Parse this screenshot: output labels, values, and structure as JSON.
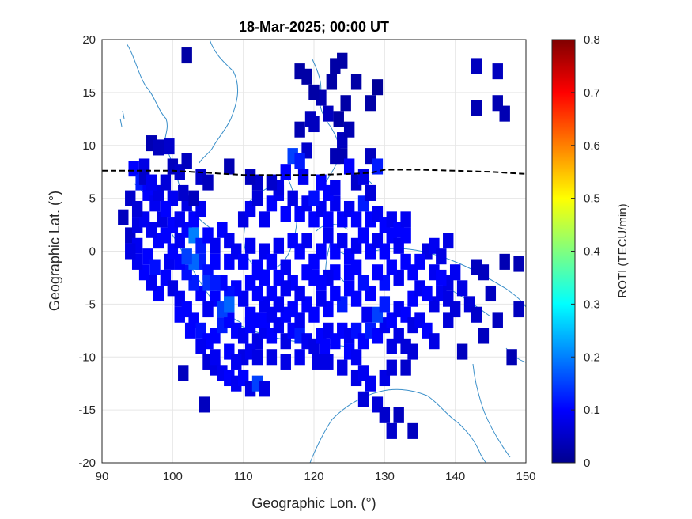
{
  "chart_data": {
    "type": "heatmap",
    "title": "18-Mar-2025; 00:00 UT",
    "xlabel": "Geographic Lon. (°)",
    "ylabel": "Geographic Lat. (°)",
    "xlim": [
      90,
      150
    ],
    "ylim": [
      -20,
      20
    ],
    "xticks": [
      "90",
      "100",
      "110",
      "120",
      "130",
      "140",
      "150"
    ],
    "yticks": [
      "20",
      "15",
      "10",
      "5",
      "0",
      "-5",
      "-10",
      "-15",
      "-20"
    ],
    "grid": true,
    "colorbar": {
      "label": "ROTI (TECU/min)",
      "range": [
        0,
        0.8
      ],
      "ticks": [
        "0.8",
        "0.7",
        "0.6",
        "0.5",
        "0.4",
        "0.3",
        "0.2",
        "0.1",
        "0"
      ],
      "colormap": "jet"
    },
    "magnetic_equator": {
      "lon": [
        90,
        95,
        100,
        105,
        110,
        115,
        120,
        125,
        128,
        130,
        135,
        140,
        145,
        150
      ],
      "lat": [
        7.6,
        7.6,
        7.6,
        7.4,
        7.2,
        7.2,
        7.2,
        7.3,
        7.4,
        7.7,
        7.7,
        7.6,
        7.5,
        7.3
      ]
    },
    "cell_size": [
      1.5,
      1.5
    ],
    "cells": [
      [
        93,
        3.2,
        0.05
      ],
      [
        94,
        1.5,
        0.06
      ],
      [
        95,
        2.5,
        0.08
      ],
      [
        94.5,
        7.8,
        0.1
      ],
      [
        95.5,
        6.5,
        0.12
      ],
      [
        96,
        8.0,
        0.08
      ],
      [
        97,
        10.2,
        0.04
      ],
      [
        98,
        9.8,
        0.05
      ],
      [
        99.5,
        9.9,
        0.06
      ],
      [
        96.5,
        5.5,
        0.1
      ],
      [
        97.5,
        4.5,
        0.09
      ],
      [
        98.5,
        3.0,
        0.08
      ],
      [
        95,
        0.5,
        0.09
      ],
      [
        96.5,
        -0.5,
        0.1
      ],
      [
        97.5,
        -1.5,
        0.11
      ],
      [
        99,
        -2.5,
        0.1
      ],
      [
        99.5,
        -1,
        0.09
      ],
      [
        100,
        -3.5,
        0.08
      ],
      [
        101,
        -4.5,
        0.09
      ],
      [
        102,
        -5.5,
        0.1
      ],
      [
        103,
        -6.5,
        0.1
      ],
      [
        104,
        -7.5,
        0.11
      ],
      [
        105,
        -8.5,
        0.1
      ],
      [
        106,
        -8,
        0.1
      ],
      [
        107,
        -7,
        0.12
      ],
      [
        108,
        -6.5,
        0.1
      ],
      [
        109,
        -7.5,
        0.1
      ],
      [
        110,
        -8,
        0.09
      ],
      [
        111,
        -7,
        0.1
      ],
      [
        112,
        -8.5,
        0.08
      ],
      [
        113,
        -7.5,
        0.09
      ],
      [
        114,
        -8,
        0.1
      ],
      [
        115,
        -7,
        0.09
      ],
      [
        116,
        -8.5,
        0.08
      ],
      [
        117,
        -7.5,
        0.1
      ],
      [
        118,
        -8,
        0.12
      ],
      [
        119,
        -8.5,
        0.09
      ],
      [
        120,
        -9,
        0.08
      ],
      [
        121,
        -8,
        0.1
      ],
      [
        122,
        -7.5,
        0.09
      ],
      [
        123,
        -8.5,
        0.1
      ],
      [
        124,
        -7.5,
        0.1
      ],
      [
        125,
        -8,
        0.09
      ],
      [
        126,
        -7.5,
        0.11
      ],
      [
        127,
        -8.5,
        0.1
      ],
      [
        128,
        -7.5,
        0.12
      ],
      [
        129,
        -8,
        0.1
      ],
      [
        130,
        -7,
        0.09
      ],
      [
        131,
        -6.5,
        0.1
      ],
      [
        132,
        -5.5,
        0.09
      ],
      [
        133,
        -6,
        0.1
      ],
      [
        134,
        -7,
        0.08
      ],
      [
        135,
        -6.5,
        0.09
      ],
      [
        136,
        -7.5,
        0.1
      ],
      [
        137,
        -5,
        0.08
      ],
      [
        138,
        -4,
        0.09
      ],
      [
        139,
        -3,
        0.08
      ],
      [
        140,
        -2,
        0.09
      ],
      [
        141,
        -3.5,
        0.08
      ],
      [
        142,
        -5,
        0.07
      ],
      [
        143,
        -6,
        0.06
      ],
      [
        144,
        -8,
        0.05
      ],
      [
        145,
        -4,
        0.05
      ],
      [
        146,
        -6.5,
        0.05
      ],
      [
        148,
        -10,
        0.04
      ],
      [
        149,
        -5.5,
        0.05
      ],
      [
        147,
        -1,
        0.04
      ],
      [
        149,
        -1.2,
        0.04
      ],
      [
        143,
        -1.5,
        0.05
      ],
      [
        144,
        -2,
        0.05
      ],
      [
        141,
        -9.5,
        0.05
      ],
      [
        137,
        -8.5,
        0.08
      ],
      [
        136,
        0,
        0.08
      ],
      [
        135,
        -1,
        0.1
      ],
      [
        137,
        0.5,
        0.09
      ],
      [
        138,
        -0.5,
        0.08
      ],
      [
        139,
        1,
        0.08
      ],
      [
        134,
        -2,
        0.1
      ],
      [
        133,
        -1,
        0.1
      ],
      [
        132,
        -2.5,
        0.09
      ],
      [
        131,
        -1.5,
        0.1
      ],
      [
        130,
        -3,
        0.11
      ],
      [
        129,
        -2,
        0.1
      ],
      [
        128,
        -4,
        0.1
      ],
      [
        127,
        -3,
        0.11
      ],
      [
        126,
        -4.5,
        0.1
      ],
      [
        125,
        -3.5,
        0.1
      ],
      [
        124,
        -5,
        0.12
      ],
      [
        123,
        -4,
        0.1
      ],
      [
        122,
        -5.5,
        0.1
      ],
      [
        121,
        -4.5,
        0.09
      ],
      [
        120,
        -6,
        0.1
      ],
      [
        119,
        -5,
        0.1
      ],
      [
        118,
        -6.5,
        0.09
      ],
      [
        117,
        -5.5,
        0.1
      ],
      [
        116,
        -6,
        0.1
      ],
      [
        115,
        -5,
        0.09
      ],
      [
        114,
        -4,
        0.1
      ],
      [
        113,
        -5,
        0.09
      ],
      [
        112,
        -4,
        0.1
      ],
      [
        111,
        -3,
        0.1
      ],
      [
        110,
        -4.5,
        0.09
      ],
      [
        109,
        -3.5,
        0.1
      ],
      [
        108,
        -4,
        0.11
      ],
      [
        107,
        -3,
        0.1
      ],
      [
        106,
        -4.5,
        0.1
      ],
      [
        105,
        -5.5,
        0.09
      ],
      [
        104,
        -4,
        0.1
      ],
      [
        103,
        -3,
        0.12
      ],
      [
        102,
        -2,
        0.11
      ],
      [
        101,
        -1,
        0.1
      ],
      [
        100,
        0,
        0.1
      ],
      [
        101,
        1,
        0.09
      ],
      [
        102,
        2,
        0.1
      ],
      [
        103,
        1.5,
        0.2
      ],
      [
        104,
        0.5,
        0.12
      ],
      [
        105,
        1.5,
        0.1
      ],
      [
        106,
        0.5,
        0.09
      ],
      [
        107,
        2,
        0.1
      ],
      [
        108,
        1,
        0.09
      ],
      [
        103,
        3,
        0.1
      ],
      [
        104,
        4,
        0.09
      ],
      [
        102,
        4.5,
        0.08
      ],
      [
        100,
        5,
        0.09
      ],
      [
        99,
        4,
        0.1
      ],
      [
        101.5,
        5.5,
        0.06
      ],
      [
        103,
        5,
        0.05
      ],
      [
        108,
        -1,
        0.1
      ],
      [
        109,
        0,
        0.09
      ],
      [
        110,
        -1,
        0.1
      ],
      [
        111,
        0.5,
        0.09
      ],
      [
        112,
        -1.5,
        0.1
      ],
      [
        113,
        0,
        0.09
      ],
      [
        114,
        -1,
        0.1
      ],
      [
        115,
        0.5,
        0.09
      ],
      [
        116,
        -1.5,
        0.09
      ],
      [
        117,
        1,
        0.1
      ],
      [
        118,
        0,
        0.1
      ],
      [
        119,
        1,
        0.09
      ],
      [
        120,
        -1,
        0.1
      ],
      [
        121,
        0,
        0.1
      ],
      [
        122,
        1.5,
        0.09
      ],
      [
        123,
        0,
        0.1
      ],
      [
        124,
        1,
        0.09
      ],
      [
        125,
        -0.5,
        0.1
      ],
      [
        126,
        0.5,
        0.09
      ],
      [
        127,
        1.5,
        0.1
      ],
      [
        128,
        0,
        0.1
      ],
      [
        129,
        1,
        0.09
      ],
      [
        130,
        0,
        0.1
      ],
      [
        131,
        1.5,
        0.1
      ],
      [
        132,
        0.5,
        0.09
      ],
      [
        133,
        1.5,
        0.1
      ],
      [
        110,
        3,
        0.08
      ],
      [
        111,
        4,
        0.09
      ],
      [
        112,
        5,
        0.07
      ],
      [
        113,
        3,
        0.09
      ],
      [
        114,
        4.5,
        0.1
      ],
      [
        115,
        5.5,
        0.09
      ],
      [
        116,
        3.5,
        0.1
      ],
      [
        117,
        5,
        0.08
      ],
      [
        118,
        3.5,
        0.1
      ],
      [
        119,
        4.5,
        0.09
      ],
      [
        120,
        3,
        0.1
      ],
      [
        121,
        4,
        0.09
      ],
      [
        122,
        3,
        0.1
      ],
      [
        123,
        4.5,
        0.09
      ],
      [
        124,
        3,
        0.1
      ],
      [
        125,
        4,
        0.09
      ],
      [
        126,
        3,
        0.1
      ],
      [
        127,
        4.5,
        0.12
      ],
      [
        128,
        3,
        0.1
      ],
      [
        129,
        3.5,
        0.09
      ],
      [
        130,
        2.5,
        0.1
      ],
      [
        131,
        3,
        0.09
      ],
      [
        132,
        2,
        0.1
      ],
      [
        133,
        3,
        0.09
      ],
      [
        110,
        -10,
        0.08
      ],
      [
        111,
        -9.5,
        0.09
      ],
      [
        112,
        -10,
        0.08
      ],
      [
        105,
        -10.5,
        0.07
      ],
      [
        106,
        -11,
        0.08
      ],
      [
        107,
        -11.5,
        0.09
      ],
      [
        108,
        -12,
        0.1
      ],
      [
        109,
        -12.5,
        0.09
      ],
      [
        110,
        -12,
        0.1
      ],
      [
        111,
        -13,
        0.08
      ],
      [
        112,
        -12.5,
        0.15
      ],
      [
        113,
        -13,
        0.08
      ],
      [
        101.5,
        -11.5,
        0.05
      ],
      [
        104.5,
        -14.5,
        0.05
      ],
      [
        122,
        -10.5,
        0.08
      ],
      [
        124,
        -11,
        0.08
      ],
      [
        126,
        -12,
        0.08
      ],
      [
        127,
        -11.5,
        0.09
      ],
      [
        128,
        -12.5,
        0.09
      ],
      [
        130,
        -12,
        0.08
      ],
      [
        131,
        -11,
        0.07
      ],
      [
        133,
        -11,
        0.06
      ],
      [
        127,
        -14,
        0.07
      ],
      [
        129,
        -14.5,
        0.07
      ],
      [
        130,
        -15.5,
        0.06
      ],
      [
        131,
        -17,
        0.06
      ],
      [
        132,
        -15.5,
        0.05
      ],
      [
        134,
        -17,
        0.05
      ],
      [
        120.5,
        -10.5,
        0.08
      ],
      [
        125,
        -9.5,
        0.1
      ],
      [
        121.5,
        -9,
        0.1
      ],
      [
        126,
        -10,
        0.09
      ],
      [
        118,
        11.5,
        0.04
      ],
      [
        119,
        9.5,
        0.06
      ],
      [
        119.5,
        12.5,
        0.05
      ],
      [
        121,
        14.5,
        0.04
      ],
      [
        122,
        13,
        0.05
      ],
      [
        123,
        9,
        0.04
      ],
      [
        124,
        10.5,
        0.05
      ],
      [
        125,
        11.5,
        0.04
      ],
      [
        124,
        9,
        0.04
      ],
      [
        125,
        8,
        0.1
      ],
      [
        128,
        9,
        0.05
      ],
      [
        129,
        8,
        0.12
      ],
      [
        123,
        17.5,
        0.03
      ],
      [
        124,
        18,
        0.03
      ],
      [
        126,
        16,
        0.03
      ],
      [
        128,
        14,
        0.03
      ],
      [
        129,
        15.5,
        0.02
      ],
      [
        120,
        12,
        0.05
      ],
      [
        117,
        9,
        0.15
      ],
      [
        118,
        8.5,
        0.12
      ],
      [
        116,
        7.5,
        0.1
      ],
      [
        115,
        6,
        0.08
      ],
      [
        118.5,
        7,
        0.09
      ],
      [
        120,
        5,
        0.11
      ],
      [
        121,
        6.5,
        0.1
      ],
      [
        122,
        5.5,
        0.1
      ],
      [
        123,
        6,
        0.09
      ],
      [
        126,
        6.5,
        0.06
      ],
      [
        128,
        5.5,
        0.07
      ],
      [
        127,
        7,
        0.08
      ],
      [
        112,
        6.5,
        0.06
      ],
      [
        111,
        7,
        0.05
      ],
      [
        114,
        6.5,
        0.06
      ],
      [
        100,
        8,
        0.05
      ],
      [
        101,
        7.5,
        0.06
      ],
      [
        102,
        8.5,
        0.05
      ],
      [
        104,
        7,
        0.06
      ],
      [
        105,
        6.5,
        0.05
      ],
      [
        108,
        8,
        0.04
      ],
      [
        102,
        18.5,
        0.03
      ],
      [
        118,
        17,
        0.03
      ],
      [
        119,
        16.5,
        0.03
      ],
      [
        120,
        15,
        0.03
      ],
      [
        122.5,
        16,
        0.03
      ],
      [
        123.5,
        12.5,
        0.03
      ],
      [
        124.5,
        14,
        0.03
      ],
      [
        143,
        17.5,
        0.05
      ],
      [
        146,
        17,
        0.05
      ],
      [
        146,
        14,
        0.04
      ],
      [
        143,
        13.5,
        0.04
      ],
      [
        147,
        13,
        0.04
      ],
      [
        101,
        -6,
        0.1
      ],
      [
        98,
        -4,
        0.1
      ],
      [
        97,
        -3,
        0.09
      ],
      [
        96,
        -2,
        0.1
      ],
      [
        95,
        -1,
        0.09
      ],
      [
        94,
        0,
        0.08
      ],
      [
        102.5,
        -7.5,
        0.1
      ],
      [
        104,
        -9,
        0.09
      ],
      [
        106,
        -10,
        0.09
      ],
      [
        108,
        -9.5,
        0.1
      ],
      [
        109,
        -10.5,
        0.09
      ],
      [
        114,
        -10,
        0.08
      ],
      [
        116,
        -10.5,
        0.08
      ],
      [
        118,
        -10,
        0.09
      ],
      [
        107,
        -5.5,
        0.15
      ],
      [
        108,
        -5,
        0.18
      ],
      [
        117,
        -3,
        0.1
      ],
      [
        118,
        -4,
        0.09
      ],
      [
        119,
        -2,
        0.1
      ],
      [
        125,
        -2,
        0.1
      ],
      [
        126,
        -1.5,
        0.1
      ],
      [
        127.5,
        -6,
        0.09
      ],
      [
        129,
        -6,
        0.15
      ],
      [
        130,
        -5,
        0.12
      ],
      [
        134,
        -4.5,
        0.1
      ],
      [
        135,
        -3.5,
        0.09
      ],
      [
        136,
        -4,
        0.1
      ],
      [
        137,
        -2,
        0.09
      ],
      [
        138,
        -2.5,
        0.1
      ],
      [
        139,
        -4.5,
        0.08
      ],
      [
        139,
        -6.5,
        0.07
      ],
      [
        140,
        -5.5,
        0.07
      ],
      [
        104,
        -1,
        0.12
      ],
      [
        105,
        -2,
        0.11
      ],
      [
        106,
        -1,
        0.1
      ],
      [
        103,
        -1,
        0.18
      ],
      [
        102,
        -0.5,
        0.15
      ],
      [
        105,
        -3,
        0.14
      ],
      [
        106,
        -3,
        0.12
      ],
      [
        99,
        1.5,
        0.1
      ],
      [
        98,
        1,
        0.1
      ],
      [
        97,
        2,
        0.09
      ],
      [
        96,
        3,
        0.09
      ],
      [
        100,
        2.5,
        0.1
      ],
      [
        101,
        3,
        0.09
      ],
      [
        94,
        5,
        0.06
      ],
      [
        95,
        4,
        0.07
      ],
      [
        98,
        5.5,
        0.08
      ],
      [
        99,
        6.5,
        0.07
      ],
      [
        96,
        7,
        0.06
      ],
      [
        97,
        6.5,
        0.09
      ],
      [
        131,
        -9,
        0.08
      ],
      [
        132,
        -8,
        0.08
      ],
      [
        133,
        -9,
        0.07
      ],
      [
        134,
        -9.5,
        0.07
      ],
      [
        123,
        -2,
        0.1
      ],
      [
        122,
        -2.5,
        0.09
      ],
      [
        121,
        -3,
        0.1
      ],
      [
        120,
        -2.5,
        0.1
      ],
      [
        115,
        -2.5,
        0.1
      ],
      [
        116,
        -3.5,
        0.09
      ],
      [
        113,
        -2.5,
        0.1
      ],
      [
        112,
        -2,
        0.1
      ],
      [
        111,
        -6,
        0.1
      ],
      [
        112,
        -6.5,
        0.1
      ],
      [
        113,
        -6.5,
        0.1
      ],
      [
        114,
        -6,
        0.09
      ]
    ]
  }
}
